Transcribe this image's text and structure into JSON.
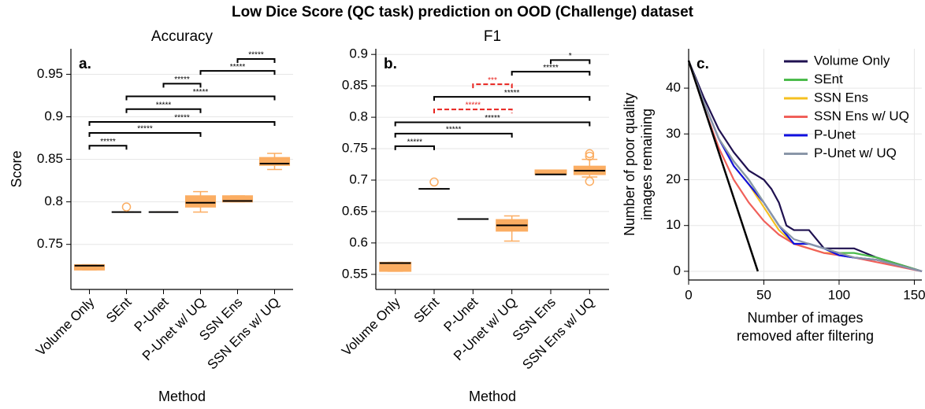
{
  "title": "Low Dice Score (QC task) prediction on OOD (Challenge) dataset",
  "chart_data": [
    {
      "type": "box",
      "title": "Accuracy",
      "panel_label": "a.",
      "xlabel": "Method",
      "ylabel": "Score",
      "categories": [
        "Volume Only",
        "SEnt",
        "P-Unet",
        "P-Unet w/ UQ",
        "SSN Ens",
        "SSN Ens w/ UQ"
      ],
      "color": "#fbad62",
      "boxes": [
        {
          "q1": 0.72,
          "median": 0.725,
          "q3": 0.726,
          "whislo": 0.72,
          "whishi": 0.726,
          "fliers": []
        },
        {
          "q1": 0.788,
          "median": 0.788,
          "q3": 0.788,
          "whislo": 0.788,
          "whishi": 0.788,
          "fliers": [
            0.794
          ]
        },
        {
          "q1": 0.788,
          "median": 0.788,
          "q3": 0.788,
          "whislo": 0.788,
          "whishi": 0.788,
          "fliers": []
        },
        {
          "q1": 0.794,
          "median": 0.799,
          "q3": 0.807,
          "whislo": 0.788,
          "whishi": 0.812,
          "fliers": []
        },
        {
          "q1": 0.8,
          "median": 0.801,
          "q3": 0.807,
          "whislo": 0.8,
          "whishi": 0.807,
          "fliers": []
        },
        {
          "q1": 0.843,
          "median": 0.845,
          "q3": 0.852,
          "whislo": 0.838,
          "whishi": 0.857,
          "fliers": []
        }
      ],
      "brackets": [
        {
          "from": "Volume Only",
          "to": "SEnt",
          "y": 0.866,
          "label": "*****",
          "color": "#000000",
          "style": "solid"
        },
        {
          "from": "Volume Only",
          "to": "P-Unet w/ UQ",
          "y": 0.881,
          "label": "*****",
          "color": "#000000",
          "style": "solid"
        },
        {
          "from": "Volume Only",
          "to": "SSN Ens w/ UQ",
          "y": 0.894,
          "label": "*****",
          "color": "#000000",
          "style": "solid"
        },
        {
          "from": "SEnt",
          "to": "P-Unet w/ UQ",
          "y": 0.909,
          "label": "*****",
          "color": "#000000",
          "style": "solid"
        },
        {
          "from": "SEnt",
          "to": "SSN Ens w/ UQ",
          "y": 0.924,
          "label": "*****",
          "color": "#000000",
          "style": "solid"
        },
        {
          "from": "P-Unet",
          "to": "P-Unet w/ UQ",
          "y": 0.939,
          "label": "*****",
          "color": "#000000",
          "style": "solid"
        },
        {
          "from": "P-Unet w/ UQ",
          "to": "SSN Ens w/ UQ",
          "y": 0.954,
          "label": "*****",
          "color": "#000000",
          "style": "solid"
        },
        {
          "from": "SSN Ens",
          "to": "SSN Ens w/ UQ",
          "y": 0.968,
          "label": "*****",
          "color": "#000000",
          "style": "solid"
        }
      ],
      "ylim": [
        0.697,
        0.98
      ],
      "yticks": [
        0.75,
        0.8,
        0.85,
        0.9,
        0.95
      ],
      "grid": true
    },
    {
      "type": "box",
      "title": "F1",
      "panel_label": "b.",
      "xlabel": "Method",
      "categories": [
        "Volume Only",
        "SEnt",
        "P-Unet",
        "P-Unet w/ UQ",
        "SSN Ens",
        "SSN Ens w/ UQ"
      ],
      "color": "#fbad62",
      "boxes": [
        {
          "q1": 0.555,
          "median": 0.568,
          "q3": 0.569,
          "whislo": 0.555,
          "whishi": 0.569,
          "fliers": []
        },
        {
          "q1": 0.686,
          "median": 0.686,
          "q3": 0.686,
          "whislo": 0.686,
          "whishi": 0.686,
          "fliers": [
            0.697
          ]
        },
        {
          "q1": 0.638,
          "median": 0.638,
          "q3": 0.638,
          "whislo": 0.638,
          "whishi": 0.638,
          "fliers": []
        },
        {
          "q1": 0.619,
          "median": 0.628,
          "q3": 0.637,
          "whislo": 0.603,
          "whishi": 0.643,
          "fliers": []
        },
        {
          "q1": 0.709,
          "median": 0.709,
          "q3": 0.716,
          "whislo": 0.709,
          "whishi": 0.716,
          "fliers": []
        },
        {
          "q1": 0.709,
          "median": 0.715,
          "q3": 0.722,
          "whislo": 0.705,
          "whishi": 0.733,
          "fliers": [
            0.698,
            0.738,
            0.742
          ]
        }
      ],
      "brackets": [
        {
          "from": "Volume Only",
          "to": "SEnt",
          "y": 0.754,
          "label": "*****",
          "color": "#000000",
          "style": "solid"
        },
        {
          "from": "Volume Only",
          "to": "P-Unet w/ UQ",
          "y": 0.774,
          "label": "*****",
          "color": "#000000",
          "style": "solid"
        },
        {
          "from": "Volume Only",
          "to": "SSN Ens w/ UQ",
          "y": 0.792,
          "label": "*****",
          "color": "#000000",
          "style": "solid"
        },
        {
          "from": "SEnt",
          "to": "P-Unet w/ UQ",
          "y": 0.8125,
          "label": "*****",
          "color": "#e8231e",
          "style": "dashed"
        },
        {
          "from": "SEnt",
          "to": "SSN Ens w/ UQ",
          "y": 0.8325,
          "label": "*****",
          "color": "#000000",
          "style": "solid"
        },
        {
          "from": "P-Unet",
          "to": "P-Unet w/ UQ",
          "y": 0.8525,
          "label": "***",
          "color": "#e8231e",
          "style": "dashed"
        },
        {
          "from": "P-Unet w/ UQ",
          "to": "SSN Ens w/ UQ",
          "y": 0.8725,
          "label": "*****",
          "color": "#000000",
          "style": "solid"
        },
        {
          "from": "SSN Ens",
          "to": "SSN Ens w/ UQ",
          "y": 0.891,
          "label": "*",
          "color": "#000000",
          "style": "solid"
        }
      ],
      "ylim": [
        0.526,
        0.909
      ],
      "yticks": [
        0.55,
        0.6,
        0.65,
        0.7,
        0.75,
        0.8,
        0.85,
        0.9
      ],
      "grid": true
    },
    {
      "type": "line",
      "panel_label": "c.",
      "xlabel": [
        "Number of images",
        "removed after filtering"
      ],
      "ylabel": [
        "Number of poor quality",
        "images remaining"
      ],
      "series": [
        {
          "name": "Volume Only",
          "color": "#1f1150",
          "x": [
            0,
            10,
            20,
            30,
            40,
            45,
            50,
            55,
            60,
            65,
            70,
            80,
            85,
            90,
            100,
            110,
            125,
            140,
            155
          ],
          "values": [
            46,
            38,
            31,
            26,
            22,
            21,
            20,
            18,
            15,
            10,
            9,
            9,
            7,
            5,
            5,
            5,
            3,
            1.5,
            0
          ]
        },
        {
          "name": "SEnt",
          "color": "#4cbb4c",
          "x": [
            0,
            10,
            20,
            30,
            40,
            50,
            60,
            70,
            80,
            90,
            100,
            110,
            125,
            155
          ],
          "values": [
            46,
            37,
            29,
            24,
            20,
            15,
            10,
            6,
            6,
            5,
            4,
            4,
            3,
            0
          ]
        },
        {
          "name": "SSN Ens",
          "color": "#f5c020",
          "x": [
            0,
            10,
            20,
            30,
            40,
            50,
            60,
            70,
            80,
            90,
            100,
            110,
            125,
            155
          ],
          "values": [
            46,
            37,
            29,
            23,
            19,
            14,
            9,
            6,
            5,
            4,
            4,
            3,
            2.5,
            0
          ]
        },
        {
          "name": "SSN Ens w/ UQ",
          "color": "#f0605a",
          "x": [
            0,
            10,
            20,
            30,
            40,
            50,
            60,
            70,
            80,
            90,
            100,
            110,
            125,
            155
          ],
          "values": [
            46,
            36,
            27,
            20,
            15,
            11,
            8,
            6,
            5,
            4,
            3.5,
            3,
            2,
            0
          ]
        },
        {
          "name": "P-Unet",
          "color": "#1010e0",
          "x": [
            0,
            10,
            20,
            30,
            40,
            50,
            60,
            70,
            80,
            90,
            100,
            110,
            125,
            155
          ],
          "values": [
            46,
            37,
            29,
            23,
            19,
            15,
            10,
            6,
            6,
            5,
            3.5,
            3,
            2.5,
            0
          ]
        },
        {
          "name": "P-Unet w/ UQ",
          "color": "#8a96a8",
          "x": [
            0,
            10,
            20,
            30,
            40,
            50,
            60,
            70,
            80,
            90,
            100,
            110,
            125,
            155
          ],
          "values": [
            46,
            37,
            29,
            24,
            20,
            15,
            10,
            7,
            6,
            5,
            4,
            3,
            2.5,
            0
          ]
        },
        {
          "color": "#000000",
          "x": [
            0,
            46
          ],
          "values": [
            46,
            0
          ]
        }
      ],
      "xlim": [
        0,
        155
      ],
      "xticks": [
        0,
        50,
        100,
        150
      ],
      "ylim": [
        -1.9,
        48.6
      ],
      "yticks": [
        0,
        10,
        20,
        30,
        40
      ],
      "grid": true,
      "legend": "upper right"
    }
  ]
}
